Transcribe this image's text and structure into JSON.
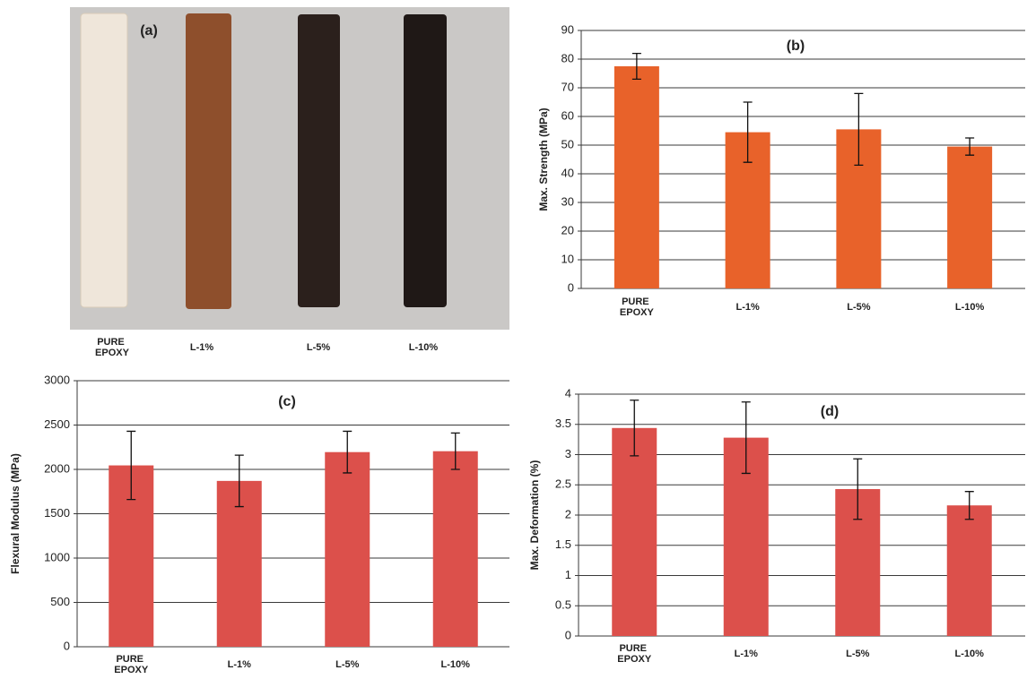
{
  "photo": {
    "label": "(a)",
    "samples": [
      "PURE EPOXY",
      "L-1%",
      "L-5%",
      "L-10%"
    ]
  },
  "chart_data": [
    {
      "type": "bar",
      "title": "(b)",
      "y_label": "Max. Strength (MPa)",
      "categories": [
        "PURE EPOXY",
        "L-1%",
        "L-5%",
        "L-10%"
      ],
      "values": [
        77.5,
        54.5,
        55.5,
        49.5
      ],
      "errors": [
        4.5,
        10.5,
        12.5,
        3
      ],
      "color": "#e8622a",
      "ylim": [
        0,
        90
      ],
      "yticks": [
        0,
        10,
        20,
        30,
        40,
        50,
        60,
        70,
        80,
        90
      ],
      "grid": true
    },
    {
      "type": "bar",
      "title": "(c)",
      "y_label": "Flexural Modulus (MPa)",
      "categories": [
        "PURE EPOXY",
        "L-1%",
        "L-5%",
        "L-10%"
      ],
      "values": [
        2045,
        1870,
        2195,
        2205
      ],
      "errors": [
        385,
        290,
        235,
        205
      ],
      "color": "#dc504b",
      "ylim": [
        0,
        3000
      ],
      "yticks": [
        0,
        500,
        1000,
        1500,
        2000,
        2500,
        3000
      ],
      "grid": true
    },
    {
      "type": "bar",
      "title": "(d)",
      "y_label": "Max. Deformation (%)",
      "categories": [
        "PURE EPOXY",
        "L-1%",
        "L-5%",
        "L-10%"
      ],
      "values": [
        3.44,
        3.28,
        2.43,
        2.16
      ],
      "errors": [
        0.46,
        0.59,
        0.5,
        0.23
      ],
      "color": "#dc504b",
      "ylim": [
        0,
        4
      ],
      "yticks": [
        0,
        0.5,
        1,
        1.5,
        2,
        2.5,
        3,
        3.5,
        4
      ],
      "grid": true
    }
  ]
}
